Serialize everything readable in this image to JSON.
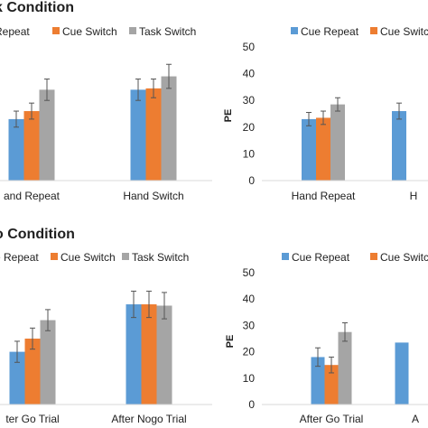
{
  "sections": {
    "top_title": "k Condition",
    "bottom_title": "o Condition"
  },
  "colors": {
    "cue_repeat": "#5b9bd5",
    "cue_switch": "#ed7d31",
    "task_switch": "#a5a5a5",
    "axis": "#d9d9d9",
    "text": "#1f1f1f",
    "error_bar": "#555555"
  },
  "chart_data": [
    {
      "type": "bar",
      "title": "",
      "xlabel": "",
      "ylabel": "",
      "categories": [
        "and Repeat",
        "Hand Switch"
      ],
      "legend_labels": [
        "Repeat",
        "Cue Switch",
        "Task Switch"
      ],
      "ylim": [
        0,
        50
      ],
      "series": [
        {
          "name": "Cue Repeat",
          "values": [
            23,
            34
          ],
          "errors": [
            3,
            4
          ]
        },
        {
          "name": "Cue Switch",
          "values": [
            26,
            34.5
          ],
          "errors": [
            3,
            3.5
          ]
        },
        {
          "name": "Task Switch",
          "values": [
            34,
            39
          ],
          "errors": [
            4,
            4.5
          ]
        }
      ]
    },
    {
      "type": "bar",
      "title": "",
      "xlabel": "",
      "ylabel": "PE",
      "categories": [
        "Hand Repeat",
        "H"
      ],
      "legend_labels": [
        "Cue Repeat",
        "Cue Switch"
      ],
      "ylim": [
        0,
        50
      ],
      "yticks": [
        0,
        10,
        20,
        30,
        40,
        50
      ],
      "series": [
        {
          "name": "Cue Repeat",
          "values": [
            23,
            26
          ],
          "errors": [
            2.5,
            3
          ]
        },
        {
          "name": "Cue Switch",
          "values": [
            23.5,
            0
          ],
          "errors": [
            2.5,
            0
          ]
        },
        {
          "name": "Task Switch",
          "values": [
            28.5,
            0
          ],
          "errors": [
            2.5,
            0
          ]
        }
      ]
    },
    {
      "type": "bar",
      "title": "",
      "xlabel": "",
      "ylabel": "",
      "categories": [
        "ter Go Trial",
        "After Nogo Trial"
      ],
      "legend_labels": [
        "e Repeat",
        "Cue Switch",
        "Task Switch"
      ],
      "ylim": [
        0,
        50
      ],
      "series": [
        {
          "name": "Cue Repeat",
          "values": [
            20,
            38
          ],
          "errors": [
            4,
            5
          ]
        },
        {
          "name": "Cue Switch",
          "values": [
            25,
            38
          ],
          "errors": [
            4,
            5
          ]
        },
        {
          "name": "Task Switch",
          "values": [
            32,
            37.5
          ],
          "errors": [
            4,
            5
          ]
        }
      ]
    },
    {
      "type": "bar",
      "title": "",
      "xlabel": "",
      "ylabel": "PE",
      "categories": [
        "After Go Trial",
        "A"
      ],
      "legend_labels": [
        "Cue Repeat",
        "Cue Switch"
      ],
      "ylim": [
        0,
        50
      ],
      "yticks": [
        0,
        10,
        20,
        30,
        40,
        50
      ],
      "series": [
        {
          "name": "Cue Repeat",
          "values": [
            18,
            23.5
          ],
          "errors": [
            3.5,
            0
          ]
        },
        {
          "name": "Cue Switch",
          "values": [
            15,
            0
          ],
          "errors": [
            3,
            0
          ]
        },
        {
          "name": "Task Switch",
          "values": [
            27.5,
            0
          ],
          "errors": [
            3.5,
            0
          ]
        }
      ]
    }
  ]
}
